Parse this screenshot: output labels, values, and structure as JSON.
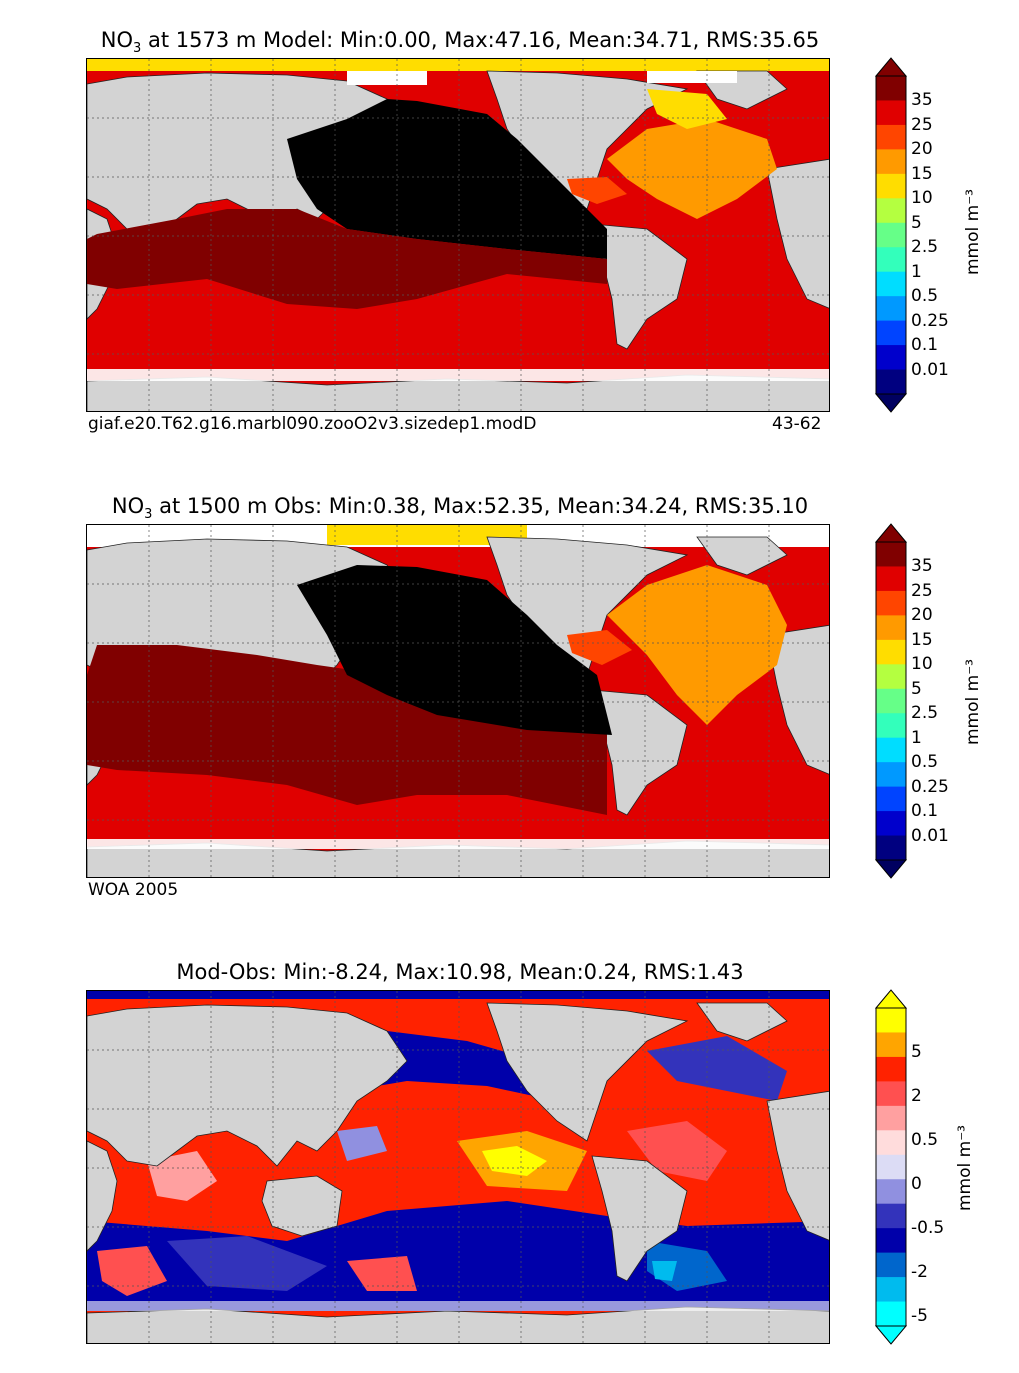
{
  "panels": [
    {
      "title_prefix": "NO",
      "title_sub": "3",
      "title_rest": " at 1573 m Model: Min:0.00, Max:47.16, Mean:34.71, RMS:35.65",
      "caption_left": "giaf.e20.T62.g16.marbl090.zooO2v3.sizedep1.modD",
      "caption_right": "43-62"
    },
    {
      "title_prefix": "NO",
      "title_sub": "3",
      "title_rest": " at 1500 m Obs: Min:0.38, Max:52.35, Mean:34.24, RMS:35.10",
      "caption_left": "WOA 2005",
      "caption_right": ""
    },
    {
      "title_full": "Mod-Obs: Min:-8.24, Max:10.98, Mean:0.24, RMS:1.43"
    }
  ],
  "colorbar_abs": {
    "unit_label": "mmol m⁻³",
    "ticks": [
      "35",
      "25",
      "20",
      "15",
      "10",
      "5",
      "2.5",
      "1",
      "0.5",
      "0.25",
      "0.1",
      "0.01"
    ],
    "colors": [
      "#800000",
      "#e00000",
      "#ff4500",
      "#ff9a00",
      "#ffdd00",
      "#b4ff40",
      "#66ff88",
      "#33ffbb",
      "#00ddff",
      "#0099ff",
      "#0044ff",
      "#0000cc",
      "#000080"
    ],
    "over_color": "#800000",
    "under_color": "#000060"
  },
  "colorbar_diff": {
    "unit_label": "mmol m⁻³",
    "ticks": [
      "5",
      "2",
      "0.5",
      "0",
      "-0.5",
      "-2",
      "-5"
    ],
    "colors": [
      "#ffff00",
      "#ffa500",
      "#ff2200",
      "#ff5050",
      "#ffa0a0",
      "#ffdcdc",
      "#dcdcf5",
      "#9090e0",
      "#3333bb",
      "#0000aa",
      "#0066cc",
      "#00bbee",
      "#00ffff"
    ],
    "over_color": "#ffff00",
    "under_color": "#00ffff"
  },
  "colors": {
    "land": "#d3d3d3",
    "nodata": "#ffffff",
    "black_region": "#000000"
  }
}
